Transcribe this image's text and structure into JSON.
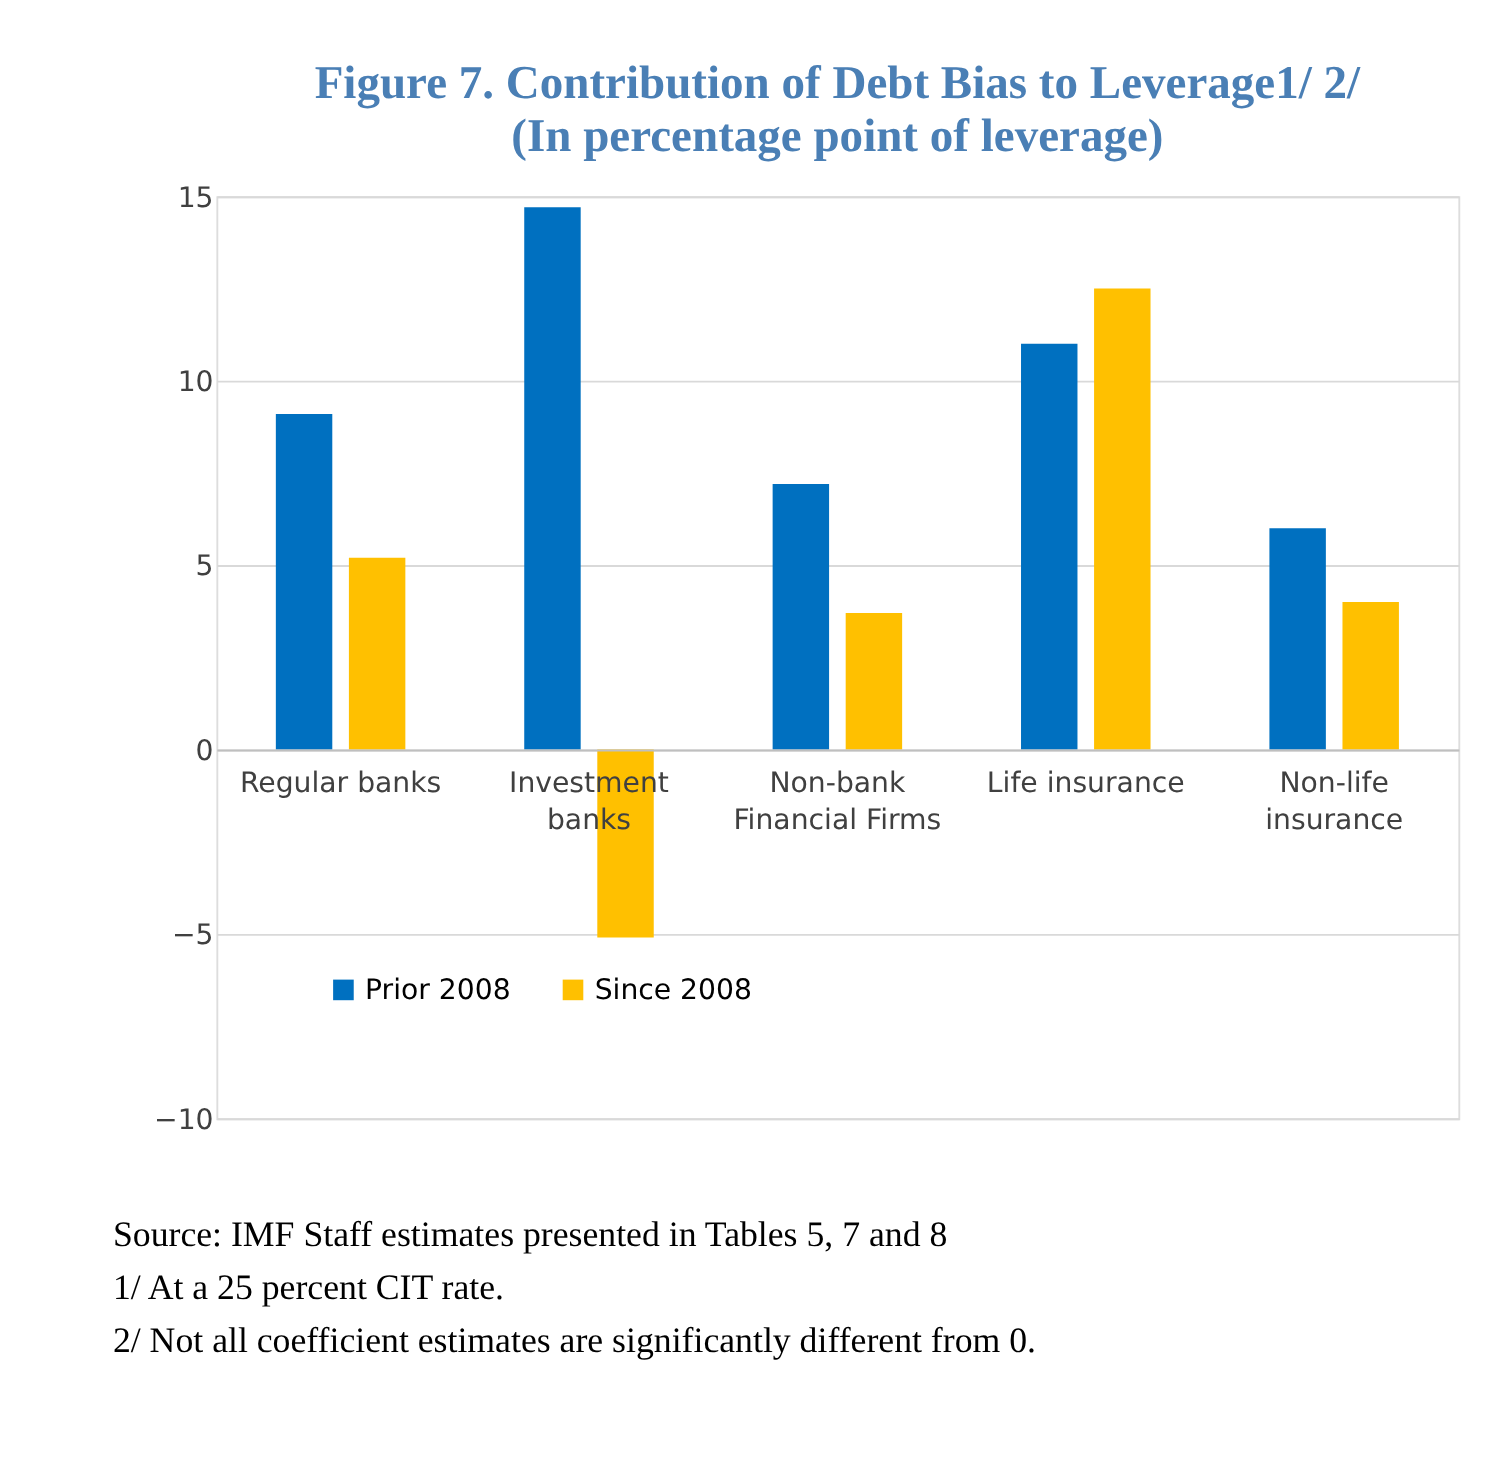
{
  "chart_data": {
    "type": "bar",
    "title": "Figure 7. Contribution of Debt Bias to Leverage1/ 2/",
    "subtitle": "(In percentage point of leverage)",
    "categories": [
      "Regular banks",
      "Investment banks",
      "Non-bank Financial Firms",
      "Life insurance",
      "Non-life insurance"
    ],
    "series": [
      {
        "name": "Prior 2008",
        "color": "#0070c0",
        "values": [
          9.1,
          14.7,
          7.2,
          11.0,
          6.0
        ]
      },
      {
        "name": "Since 2008",
        "color": "#ffc000",
        "values": [
          5.2,
          -5.1,
          3.7,
          12.5,
          4.0
        ]
      }
    ],
    "ylim": [
      -10,
      15
    ],
    "yticks": [
      -10,
      -5,
      0,
      5,
      10,
      15
    ],
    "grid": "y",
    "legend": "bottom left",
    "annotations": [
      "Source: IMF Staff estimates presented in Tables 5, 7 and 8",
      "1/ At a 25 percent CIT rate.",
      "2/ Not all coefficient estimates are significantly different from 0."
    ]
  }
}
